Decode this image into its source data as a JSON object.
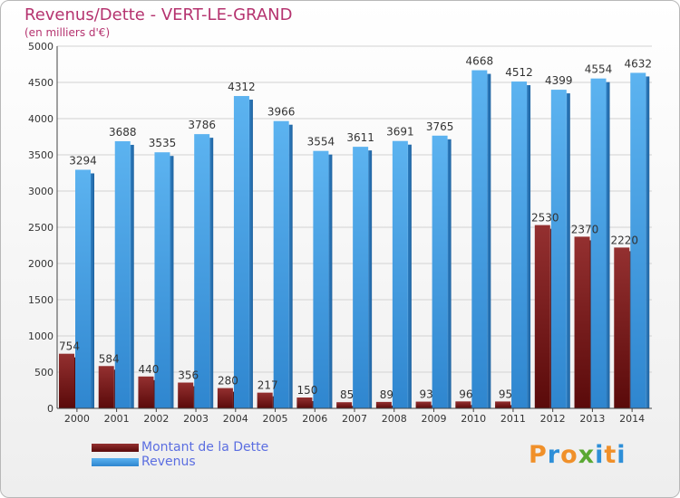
{
  "chart_data": {
    "type": "bar",
    "title": "Revenus/Dette - VERT-LE-GRAND",
    "subtitle": "(en milliers d'€)",
    "categories": [
      "2000",
      "2001",
      "2002",
      "2003",
      "2004",
      "2005",
      "2006",
      "2007",
      "2008",
      "2009",
      "2010",
      "2011",
      "2012",
      "2013",
      "2014"
    ],
    "series": [
      {
        "name": "Montant de la Dette",
        "values": [
          754,
          584,
          440,
          356,
          280,
          217,
          150,
          85,
          89,
          93,
          96,
          95,
          2530,
          2370,
          2220
        ],
        "color": "#7a1c1c"
      },
      {
        "name": "Revenus",
        "values": [
          3294,
          3688,
          3535,
          3786,
          4312,
          3966,
          3554,
          3611,
          3691,
          3765,
          4668,
          4512,
          4399,
          4554,
          4632
        ],
        "color": "#4aa3e6"
      }
    ],
    "ylim": [
      0,
      5000
    ],
    "yticks": [
      0,
      500,
      1000,
      1500,
      2000,
      2500,
      3000,
      3500,
      4000,
      4500,
      5000
    ],
    "grid": true,
    "legend_position": "bottom-left"
  },
  "logo": {
    "text": "Proxiti"
  }
}
